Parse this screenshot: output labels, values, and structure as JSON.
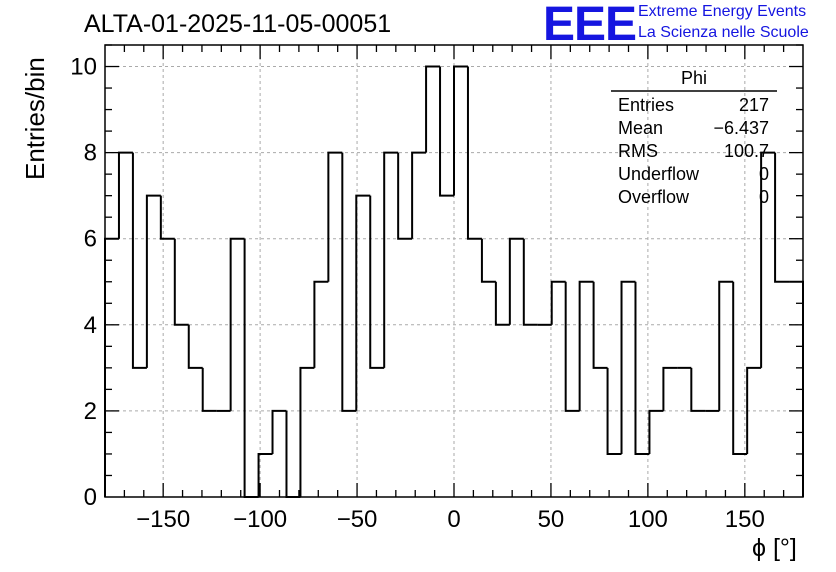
{
  "header": {
    "title": "ALTA-01-2025-11-05-00051",
    "logo_text": "EEE",
    "logo_line1": "Extreme Energy Events",
    "logo_line2": "La Scienza nelle Scuole",
    "logo_color": "#1515e0"
  },
  "stats_box": {
    "name": "Phi",
    "rows": [
      {
        "label": "Entries",
        "value": "217"
      },
      {
        "label": "Mean",
        "value": "−6.437"
      },
      {
        "label": "RMS",
        "value": "100.7"
      },
      {
        "label": "Underflow",
        "value": "0"
      },
      {
        "label": "Overflow",
        "value": "0"
      }
    ]
  },
  "chart_data": {
    "type": "histogram",
    "xlabel": "ϕ [°]",
    "ylabel": "Entries/bin",
    "xlim": [
      -180,
      180
    ],
    "ylim": [
      0,
      10.5
    ],
    "bin_width": 7.2,
    "bin_edges_start": -180,
    "xticks": [
      -150,
      -100,
      -50,
      0,
      50,
      100,
      150
    ],
    "yticks": [
      0,
      2,
      4,
      6,
      8,
      10
    ],
    "grid": true,
    "line_color": "#000000",
    "values": [
      6,
      8,
      3,
      7,
      6,
      4,
      3,
      2,
      2,
      6,
      0,
      1,
      2,
      0,
      3,
      5,
      8,
      2,
      7,
      3,
      8,
      6,
      8,
      10,
      7,
      10,
      6,
      5,
      4,
      6,
      4,
      4,
      5,
      2,
      5,
      3,
      1,
      5,
      1,
      2,
      3,
      3,
      2,
      2,
      5,
      1,
      3,
      8,
      5,
      5
    ]
  }
}
